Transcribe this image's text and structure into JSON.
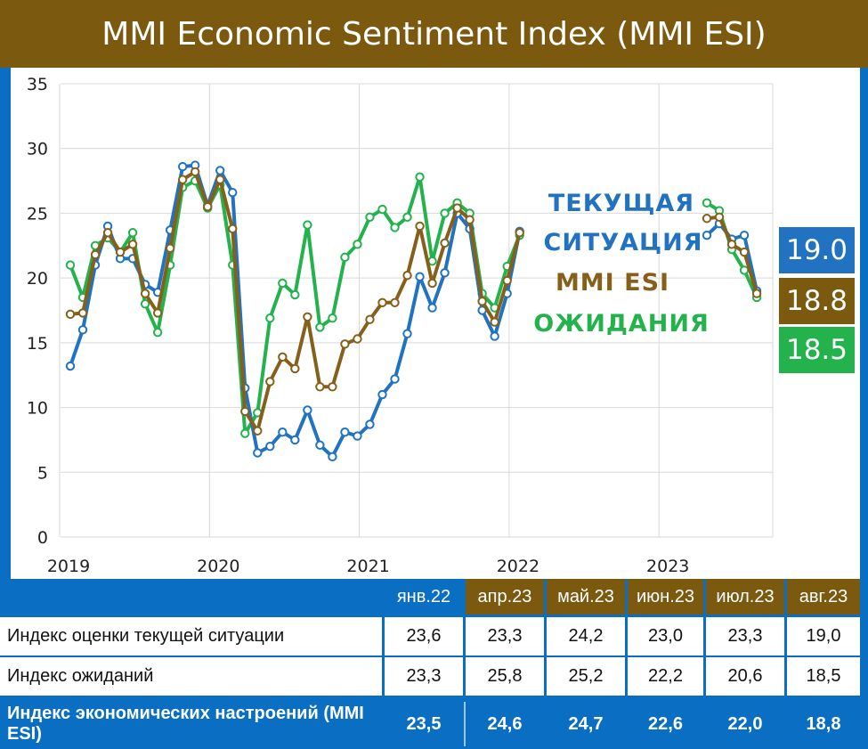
{
  "title": "MMI Economic Sentiment Index (MMI ESI)",
  "colors": {
    "current": "#2173c1",
    "esi": "#86601a",
    "expect": "#23b24c",
    "frame": "#0a6fc2",
    "brown": "#7b5a10"
  },
  "chart_data": {
    "type": "line",
    "title": "MMI Economic Sentiment Index (MMI ESI)",
    "ylim": [
      0,
      35
    ],
    "yticks": [
      "0",
      "5",
      "10",
      "15",
      "20",
      "25",
      "30",
      "35"
    ],
    "xticks": [
      "2019",
      "2020",
      "2021",
      "2022",
      "2023"
    ],
    "x_start": 2019.0,
    "x_step": 0.0833,
    "legend": [
      "ТЕКУЩАЯ",
      "СИТУАЦИЯ",
      "MMI ESI",
      "ОЖИДАНИЯ"
    ],
    "series": [
      {
        "name": "Текущая ситуация",
        "color": "#2173c1",
        "segments": [
          [
            13.2,
            16.0,
            21.0,
            24.0,
            21.5,
            21.5,
            19.5,
            18.9,
            23.7,
            28.6,
            28.7,
            25.6,
            28.3,
            26.6,
            11.5,
            6.5,
            7.0,
            8.1,
            7.5,
            9.8,
            7.1,
            6.2,
            8.1,
            7.8,
            8.7,
            11.0,
            12.2,
            15.7,
            20.1,
            17.7,
            20.4,
            25.0,
            23.8,
            17.5,
            15.5,
            18.8,
            23.6
          ],
          {
            "start_index": 51,
            "values": [
              23.3,
              24.2,
              23.0,
              23.3,
              19.0
            ]
          }
        ]
      },
      {
        "name": "MMI ESI",
        "color": "#86601a",
        "segments": [
          [
            17.2,
            17.3,
            21.8,
            23.5,
            22.0,
            22.6,
            18.8,
            17.3,
            22.3,
            27.6,
            28.2,
            25.5,
            27.6,
            23.8,
            9.7,
            8.2,
            12.0,
            13.9,
            13.0,
            17.0,
            11.6,
            11.6,
            14.9,
            15.3,
            16.8,
            18.1,
            18.1,
            20.2,
            24.0,
            19.6,
            22.7,
            25.4,
            24.5,
            18.2,
            16.6,
            19.8,
            23.5
          ],
          {
            "start_index": 51,
            "values": [
              24.6,
              24.7,
              22.6,
              22.0,
              18.8
            ]
          }
        ]
      },
      {
        "name": "Ожидания",
        "color": "#23b24c",
        "segments": [
          [
            21.0,
            18.5,
            22.5,
            23.1,
            22.0,
            23.5,
            18.0,
            15.8,
            21.0,
            27.0,
            27.5,
            25.4,
            27.2,
            21.0,
            8.0,
            9.6,
            16.9,
            19.6,
            18.7,
            24.1,
            16.2,
            16.9,
            21.6,
            22.6,
            24.7,
            25.3,
            23.9,
            24.7,
            27.8,
            21.3,
            25.0,
            25.8,
            25.0,
            18.8,
            17.7,
            20.9,
            23.3
          ],
          {
            "start_index": 51,
            "values": [
              25.8,
              25.2,
              22.2,
              20.6,
              18.5
            ]
          }
        ]
      }
    ]
  },
  "badges": {
    "current": "19.0",
    "esi": "18.8",
    "expect": "18.5"
  },
  "table": {
    "headers": [
      "янв.22",
      "апр.23",
      "май.23",
      "июн.23",
      "июл.23",
      "авг.23"
    ],
    "rows": [
      {
        "label": "Индекс оценки текущей ситуации",
        "values": [
          "23,6",
          "23,3",
          "24,2",
          "23,0",
          "23,3",
          "19,0"
        ]
      },
      {
        "label": "Индекс ожиданий",
        "values": [
          "23,3",
          "25,8",
          "25,2",
          "22,2",
          "20,6",
          "18,5"
        ]
      },
      {
        "label": "Индекс экономических настроений (MMI ESI)",
        "values": [
          "23,5",
          "24,6",
          "24,7",
          "22,6",
          "22,0",
          "18,8"
        ]
      }
    ]
  }
}
